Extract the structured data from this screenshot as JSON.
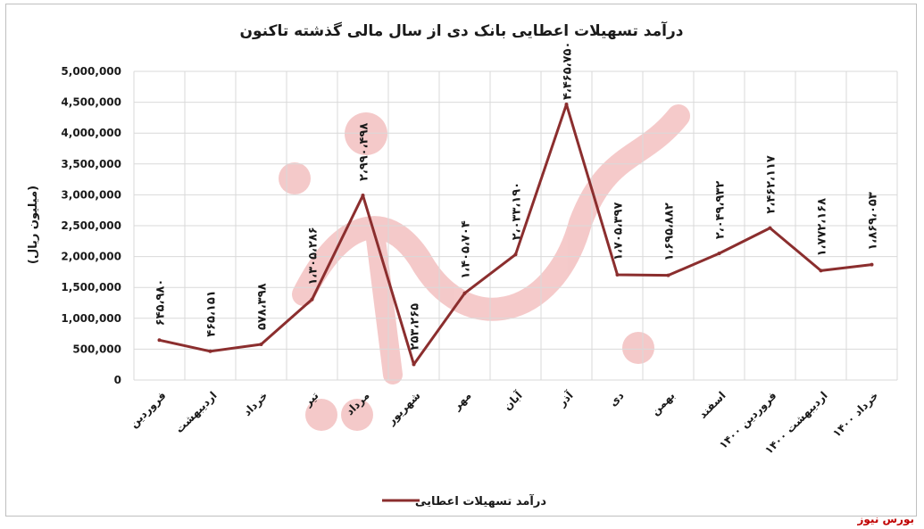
{
  "chart_data": {
    "type": "line",
    "title": "درآمد تسهیلات اعطایی بانک دی از سال مالی گذشته تاکنون",
    "ylabel": "(میلیون ریال)",
    "xlabel": "",
    "ylim": [
      0,
      5000000
    ],
    "yticks": [
      {
        "v": 0,
        "label": "0"
      },
      {
        "v": 500000,
        "label": "500,000"
      },
      {
        "v": 1000000,
        "label": "1,000,000"
      },
      {
        "v": 1500000,
        "label": "1,500,000"
      },
      {
        "v": 2000000,
        "label": "2,000,000"
      },
      {
        "v": 2500000,
        "label": "2,500,000"
      },
      {
        "v": 3000000,
        "label": "3,000,000"
      },
      {
        "v": 3500000,
        "label": "3,500,000"
      },
      {
        "v": 4000000,
        "label": "4,000,000"
      },
      {
        "v": 4500000,
        "label": "4,500,000"
      },
      {
        "v": 5000000,
        "label": "5,000,000"
      }
    ],
    "categories": [
      "فروردین",
      "اردیبهشت",
      "خرداد",
      "تیر",
      "مرداد",
      "شهریور",
      "مهر",
      "آبان",
      "آذر",
      "دی",
      "بهمن",
      "اسفند",
      "فروردین ۱۴۰۰",
      "اردیبهشت ۱۴۰۰",
      "خرداد ۱۴۰۰"
    ],
    "series": [
      {
        "name": "درآمد تسهیلات اعطایی",
        "values": [
          645980,
          465151,
          578398,
          1305286,
          2990498,
          253265,
          1405704,
          2033190,
          4465750,
          1705397,
          1695882,
          2049932,
          2462117,
          1772168,
          1869053
        ],
        "labels": [
          "۶۴۵،۹۸۰",
          "۴۶۵،۱۵۱",
          "۵۷۸،۳۹۸",
          "۱،۳۰۵،۲۸۶",
          "۲،۹۹۰،۴۹۸",
          "۲۵۳،۲۶۵",
          "۱،۴۰۵،۷۰۴",
          "۲،۰۳۳،۱۹۰",
          "۴،۴۶۵،۷۵۰",
          "۱،۷۰۵،۳۹۷",
          "۱،۶۹۵،۸۸۲",
          "۲،۰۴۹،۹۳۲",
          "۲،۴۶۲،۱۱۷",
          "۱،۷۷۲،۱۶۸",
          "۱،۸۶۹،۰۵۳"
        ],
        "color": "#8b2e2e"
      }
    ],
    "grid": true,
    "legend_position": "bottom"
  },
  "watermark": "بورس نیوز",
  "source_text": "بورس نیوز"
}
